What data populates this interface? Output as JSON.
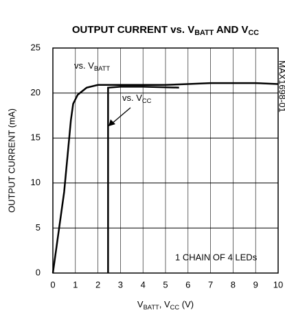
{
  "chart_data": {
    "type": "line",
    "title": [
      "OUTPUT CURRENT vs. V",
      "BATT",
      " AND V",
      "CC"
    ],
    "x_label": [
      "V",
      "BATT",
      ", V",
      "CC",
      " (V)"
    ],
    "y_label": "OUTPUT CURRENT (mA)",
    "xlim": [
      0,
      10
    ],
    "xticks": [
      0,
      1,
      2,
      3,
      4,
      5,
      6,
      7,
      8,
      9,
      10
    ],
    "ylim": [
      0,
      25
    ],
    "yticks": [
      0,
      5,
      10,
      15,
      20,
      25
    ],
    "grid": true,
    "series": [
      {
        "name": [
          "vs. V",
          "BATT"
        ],
        "color": "#000000",
        "x": [
          0,
          0.5,
          0.8,
          0.9,
          1.1,
          1.5,
          2,
          3,
          4,
          5,
          6,
          7,
          8,
          9,
          10
        ],
        "values": [
          0,
          9,
          17,
          18.8,
          19.8,
          20.6,
          20.9,
          20.9,
          20.9,
          20.9,
          21,
          21.1,
          21.1,
          21.1,
          21
        ]
      },
      {
        "name": [
          "vs. V",
          "CC"
        ],
        "color": "#000000",
        "x": [
          2.45,
          2.45,
          3,
          4,
          5.6
        ],
        "values": [
          0,
          20.6,
          20.7,
          20.7,
          20.6
        ]
      }
    ],
    "annotations": [
      "1 CHAIN OF 4 LEDs",
      "MAX1698-01"
    ]
  }
}
